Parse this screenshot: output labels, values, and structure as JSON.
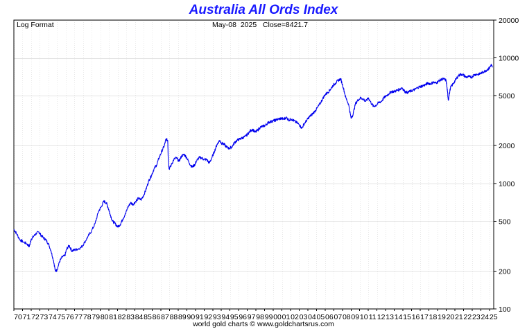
{
  "chart_data": {
    "type": "line",
    "title": "Australia All Ords Index",
    "subtitle_left": "Log Format",
    "header_info": "May-08  2025   Close=8421.7",
    "footer": "world gold charts © www.goldchartsrus.com",
    "yscale": "log",
    "ylim": [
      100,
      20000
    ],
    "y_ticks": [
      100,
      200,
      500,
      1000,
      2000,
      5000,
      10000,
      20000
    ],
    "x_range": [
      1970,
      2025.5
    ],
    "x_tick_labels": [
      "70",
      "71",
      "72",
      "73",
      "74",
      "75",
      "76",
      "77",
      "78",
      "79",
      "80",
      "81",
      "82",
      "83",
      "84",
      "85",
      "86",
      "87",
      "88",
      "89",
      "90",
      "91",
      "92",
      "93",
      "94",
      "95",
      "96",
      "97",
      "98",
      "99",
      "00",
      "01",
      "02",
      "03",
      "04",
      "05",
      "06",
      "07",
      "08",
      "09",
      "10",
      "11",
      "12",
      "13",
      "14",
      "15",
      "16",
      "17",
      "18",
      "19",
      "20",
      "21",
      "22",
      "23",
      "24",
      "25"
    ],
    "grid": true,
    "series": [
      {
        "color": "#0000ee",
        "x": [
          1970.0,
          1970.3,
          1970.7,
          1971.0,
          1971.5,
          1971.8,
          1972.0,
          1972.3,
          1972.6,
          1972.9,
          1973.1,
          1973.4,
          1973.7,
          1974.0,
          1974.3,
          1974.6,
          1974.8,
          1975.0,
          1975.3,
          1975.6,
          1975.9,
          1976.1,
          1976.4,
          1976.7,
          1977.0,
          1977.4,
          1977.8,
          1978.2,
          1978.6,
          1979.0,
          1979.4,
          1979.8,
          1980.1,
          1980.4,
          1980.7,
          1980.9,
          1981.1,
          1981.4,
          1981.7,
          1982.0,
          1982.3,
          1982.6,
          1982.9,
          1983.2,
          1983.5,
          1983.8,
          1984.1,
          1984.4,
          1984.7,
          1985.0,
          1985.3,
          1985.6,
          1985.9,
          1986.2,
          1986.5,
          1986.8,
          1987.1,
          1987.4,
          1987.6,
          1987.8,
          1987.85,
          1987.95,
          1988.2,
          1988.5,
          1988.8,
          1989.1,
          1989.4,
          1989.7,
          1990.0,
          1990.3,
          1990.6,
          1990.9,
          1991.1,
          1991.4,
          1991.7,
          1992.0,
          1992.3,
          1992.6,
          1992.9,
          1993.2,
          1993.5,
          1993.8,
          1994.0,
          1994.3,
          1994.6,
          1994.9,
          1995.2,
          1995.5,
          1995.8,
          1996.1,
          1996.4,
          1996.7,
          1997.0,
          1997.3,
          1997.6,
          1997.9,
          1998.2,
          1998.5,
          1998.8,
          1999.1,
          1999.4,
          1999.7,
          2000.0,
          2000.3,
          2000.6,
          2000.9,
          2001.2,
          2001.5,
          2001.8,
          2002.1,
          2002.4,
          2002.7,
          2003.0,
          2003.3,
          2003.6,
          2003.9,
          2004.2,
          2004.5,
          2004.8,
          2005.1,
          2005.4,
          2005.7,
          2006.0,
          2006.3,
          2006.6,
          2006.9,
          2007.2,
          2007.5,
          2007.8,
          2008.1,
          2008.4,
          2008.7,
          2009.0,
          2009.2,
          2009.5,
          2009.8,
          2010.1,
          2010.4,
          2010.7,
          2011.0,
          2011.3,
          2011.6,
          2011.9,
          2012.2,
          2012.5,
          2012.8,
          2013.1,
          2013.4,
          2013.7,
          2014.0,
          2014.3,
          2014.6,
          2014.9,
          2015.2,
          2015.5,
          2015.8,
          2016.1,
          2016.4,
          2016.7,
          2017.0,
          2017.3,
          2017.6,
          2017.9,
          2018.2,
          2018.5,
          2018.8,
          2019.1,
          2019.4,
          2019.7,
          2020.0,
          2020.15,
          2020.25,
          2020.5,
          2020.8,
          2021.1,
          2021.4,
          2021.7,
          2022.0,
          2022.3,
          2022.6,
          2022.9,
          2023.2,
          2023.5,
          2023.8,
          2024.1,
          2024.4,
          2024.7,
          2025.0,
          2025.2,
          2025.35
        ],
        "y": [
          430,
          400,
          355,
          345,
          330,
          315,
          360,
          380,
          400,
          410,
          390,
          370,
          355,
          330,
          290,
          240,
          200,
          205,
          240,
          260,
          265,
          300,
          320,
          290,
          295,
          300,
          310,
          340,
          380,
          420,
          480,
          600,
          650,
          720,
          700,
          640,
          580,
          500,
          480,
          450,
          470,
          520,
          570,
          650,
          700,
          680,
          720,
          760,
          740,
          800,
          900,
          1050,
          1150,
          1300,
          1400,
          1600,
          1800,
          2000,
          2250,
          2200,
          1600,
          1300,
          1400,
          1550,
          1600,
          1500,
          1650,
          1700,
          1600,
          1450,
          1350,
          1400,
          1500,
          1600,
          1600,
          1550,
          1550,
          1450,
          1600,
          1800,
          2050,
          2200,
          2100,
          2050,
          1950,
          1900,
          1950,
          2100,
          2200,
          2250,
          2300,
          2350,
          2450,
          2600,
          2700,
          2550,
          2650,
          2800,
          2850,
          2900,
          3050,
          3100,
          3150,
          3200,
          3250,
          3300,
          3250,
          3350,
          3200,
          3250,
          3150,
          3050,
          2950,
          2750,
          3000,
          3200,
          3400,
          3550,
          3750,
          4000,
          4300,
          4700,
          5100,
          5300,
          5600,
          6000,
          6300,
          6600,
          6800,
          5800,
          4800,
          4300,
          3300,
          3500,
          4300,
          4600,
          4800,
          4700,
          4500,
          4800,
          4400,
          4100,
          4200,
          4400,
          4500,
          4800,
          5000,
          5200,
          5400,
          5400,
          5500,
          5600,
          5800,
          5400,
          5300,
          5400,
          5500,
          5600,
          5800,
          5900,
          6000,
          6100,
          6300,
          6200,
          6400,
          6300,
          6500,
          6700,
          6800,
          6600,
          5400,
          4600,
          5800,
          6200,
          6700,
          7200,
          7400,
          7300,
          7000,
          7100,
          7000,
          7300,
          7400,
          7400,
          7600,
          7800,
          8000,
          8300,
          8800,
          8400
        ]
      }
    ]
  }
}
